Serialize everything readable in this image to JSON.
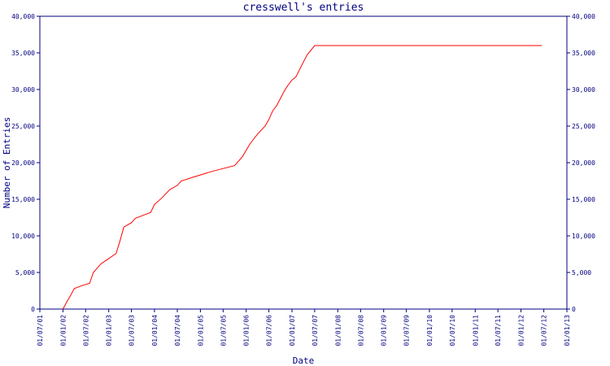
{
  "chart_data": {
    "type": "line",
    "title": "cresswell's entries",
    "xlabel": "Date",
    "ylabel": "Number of Entries",
    "ylim": [
      0,
      40000
    ],
    "yticks": [
      0,
      5000,
      10000,
      15000,
      20000,
      25000,
      30000,
      35000,
      40000
    ],
    "ytick_labels": [
      "0",
      "5,000",
      "10,000",
      "15,000",
      "20,000",
      "25,000",
      "30,000",
      "35,000",
      "40,000"
    ],
    "xtick_labels": [
      "01/07/01",
      "01/01/02",
      "01/07/02",
      "01/01/03",
      "01/07/03",
      "01/01/04",
      "01/07/04",
      "01/01/05",
      "01/07/05",
      "01/01/06",
      "01/07/06",
      "01/01/07",
      "01/07/07",
      "01/01/08",
      "01/07/08",
      "01/01/09",
      "01/07/09",
      "01/01/10",
      "01/07/10",
      "01/01/11",
      "01/07/11",
      "01/01/12",
      "01/07/12",
      "01/01/13"
    ],
    "grid": false,
    "series": [
      {
        "color": "#ff0000",
        "points": [
          {
            "x": "01/01/02",
            "y": 0
          },
          {
            "x": "01/02/02",
            "y": 1000
          },
          {
            "x": "01/03/02",
            "y": 1800
          },
          {
            "x": "01/04/02",
            "y": 2800
          },
          {
            "x": "01/06/02",
            "y": 3200
          },
          {
            "x": "01/08/02",
            "y": 3500
          },
          {
            "x": "01/09/02",
            "y": 5000
          },
          {
            "x": "01/11/02",
            "y": 6200
          },
          {
            "x": "01/01/03",
            "y": 6900
          },
          {
            "x": "01/03/03",
            "y": 7600
          },
          {
            "x": "01/04/03",
            "y": 9300
          },
          {
            "x": "01/05/03",
            "y": 11200
          },
          {
            "x": "01/07/03",
            "y": 11800
          },
          {
            "x": "01/08/03",
            "y": 12400
          },
          {
            "x": "01/10/03",
            "y": 12800
          },
          {
            "x": "01/12/03",
            "y": 13200
          },
          {
            "x": "01/01/04",
            "y": 14300
          },
          {
            "x": "01/03/04",
            "y": 15200
          },
          {
            "x": "01/05/04",
            "y": 16300
          },
          {
            "x": "01/07/04",
            "y": 16900
          },
          {
            "x": "01/08/04",
            "y": 17500
          },
          {
            "x": "01/11/04",
            "y": 18000
          },
          {
            "x": "01/04/05",
            "y": 18800
          },
          {
            "x": "01/10/05",
            "y": 19600
          },
          {
            "x": "01/12/05",
            "y": 20800
          },
          {
            "x": "01/02/06",
            "y": 22600
          },
          {
            "x": "01/04/06",
            "y": 23900
          },
          {
            "x": "01/06/06",
            "y": 25000
          },
          {
            "x": "01/07/06",
            "y": 25900
          },
          {
            "x": "01/08/06",
            "y": 27100
          },
          {
            "x": "01/09/06",
            "y": 27800
          },
          {
            "x": "01/11/06",
            "y": 29800
          },
          {
            "x": "01/12/06",
            "y": 30600
          },
          {
            "x": "01/01/07",
            "y": 31300
          },
          {
            "x": "01/02/07",
            "y": 31700
          },
          {
            "x": "01/04/07",
            "y": 33700
          },
          {
            "x": "01/05/07",
            "y": 34700
          },
          {
            "x": "01/07/07",
            "y": 36000
          },
          {
            "x": "15/06/12",
            "y": 36000
          }
        ]
      }
    ]
  }
}
